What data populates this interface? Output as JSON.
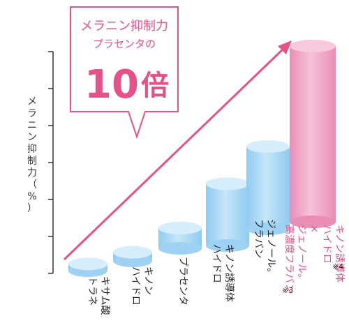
{
  "chart_data": {
    "type": "bar",
    "ylabel": "メラニン抑制力（%）",
    "categories": [
      {
        "lines": [
          "トラネ",
          "キサム酸"
        ],
        "note": ""
      },
      {
        "lines": [
          "ハイドロ",
          "キノン"
        ],
        "note": ""
      },
      {
        "lines": [
          "プラセンタ"
        ],
        "note": ""
      },
      {
        "lines": [
          "ハイドロ",
          "キノン誘導体"
        ],
        "note": ""
      },
      {
        "lines": [
          "フラバン",
          "ジェノール。"
        ],
        "note": ""
      },
      {
        "lines": [
          "高濃度フラバン",
          "ジェノール。",
          "×",
          "ハイドロ",
          "キノン誘導体"
        ],
        "note": "※3 ※4",
        "notes": [
          "※4",
          "※3"
        ]
      }
    ],
    "values": [
      0.3,
      0.4,
      1.0,
      3.1,
      4.5,
      10.0
    ],
    "highlight_index": 5,
    "colors": {
      "bar": "#a9d8f4",
      "bar_top": "#d6eefb",
      "highlight": "#f0a0c4",
      "highlight_top": "#f8c8dc",
      "accent": "#e8508a",
      "axis": "#333333"
    }
  },
  "callout": {
    "line1": "メラニン抑制力",
    "line2": "プラセンタの",
    "big_number": "10",
    "suffix": "倍"
  }
}
